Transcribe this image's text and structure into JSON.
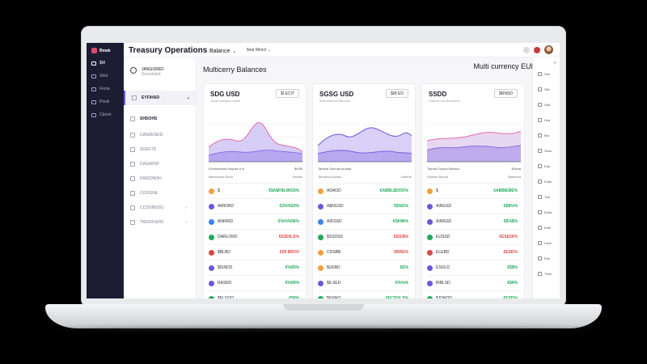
{
  "colors": {
    "accent": "#6b57d9",
    "positive": "#1faa5c",
    "negative": "#e24848",
    "rail": "#1c1d33"
  },
  "app": {
    "title": "Treasury Operations",
    "title_sub": "Balance",
    "workspace": "$ola Mimol"
  },
  "rail": {
    "brand": "Bmak",
    "items": [
      "$M",
      "Sbol",
      "Fiona",
      "Pinsk",
      "Cbomi"
    ]
  },
  "nav2": {
    "head_title": "JANGORED",
    "head_sub": "Soundsket",
    "items": [
      "EYFIHAD",
      "SHDOHS",
      "CANDENDD",
      "SDEKTD",
      "CASARSP",
      "DWDDNOH",
      "COOGNE",
      "CCDDBDOG",
      "TMDOOSHD"
    ]
  },
  "main": {
    "title": "Multicerry Balances",
    "currency_select": "Multi currency EUR HH"
  },
  "cards": [
    {
      "title": "SDG USD",
      "subtitle": "Sitoni nazigho ndosh",
      "button": "$I ECIT",
      "meta_left": "Echnmeonal Hasuse e ki",
      "meta_right": "$H3B",
      "meta2_left": "Ialaneoaial Dindi",
      "meta2_right": "Samlel",
      "rows": [
        {
          "ticker": "$",
          "value": "€$A$FBLWOS%",
          "sign": "pos",
          "coin": "#f2a03a"
        },
        {
          "ticker": "AMIORD",
          "value": "€2%%53%",
          "sign": "pos",
          "coin": "#6b57d9"
        },
        {
          "ticker": "ANIRRD",
          "value": "€%%%56%",
          "sign": "pos",
          "coin": "#3b82f6"
        },
        {
          "ticker": "DARLORD",
          "value": "€ESDILS%",
          "sign": "neg",
          "coin": "#1faa5c"
        },
        {
          "ticker": "$BLBD",
          "value": "€28 BRVO",
          "sign": "neg",
          "coin": "#d94848"
        },
        {
          "ticker": "$ISNDD",
          "value": "€%65%",
          "sign": "pos",
          "coin": "#6b57d9"
        },
        {
          "ticker": "RASRD",
          "value": "€%00%",
          "sign": "pos",
          "coin": "#6b57d9"
        },
        {
          "ticker": "$ELDOO",
          "value": "€$0%",
          "sign": "pos",
          "coin": "#1faa5c"
        }
      ]
    },
    {
      "title": "SGSG USD",
      "subtitle": "Biceoshidunt dkhoms",
      "button": "$IB ED",
      "meta_left": "Tarandt Diinnad anotaa",
      "meta_right": "",
      "meta2_left": "Teruwed Ausilan",
      "meta2_right": "Dahrue",
      "rows": [
        {
          "ticker": "ADAOD",
          "value": "€ABBL$DOO%",
          "sign": "pos",
          "coin": "#f2a03a"
        },
        {
          "ticker": "A$NGSD",
          "value": "€$%E%",
          "sign": "pos",
          "coin": "#6b57d9"
        },
        {
          "ticker": "AIDSSD",
          "value": "€SHIN%",
          "sign": "pos",
          "coin": "#3b82f6"
        },
        {
          "ticker": "$SSDSD",
          "value": "€ESI$%",
          "sign": "neg",
          "coin": "#1faa5c"
        },
        {
          "ticker": "CDSBB",
          "value": "€BRE%",
          "sign": "neg",
          "coin": "#f2a03a"
        },
        {
          "ticker": "$UEBD",
          "value": "€E%",
          "sign": "pos",
          "coin": "#f2a03a"
        },
        {
          "ticker": "$ILSED",
          "value": "€%%%",
          "sign": "pos",
          "coin": "#6b57d9"
        },
        {
          "ticker": "$ENNO",
          "value": "€ECDOLS%",
          "sign": "pos",
          "coin": "#1faa5c"
        }
      ]
    },
    {
      "title": "SSDD",
      "subtitle": "Suhmis dos denumos",
      "button": "$RNSD",
      "meta_left": "Tiancie Drosod Mhaoo",
      "meta_right": "$Ssaa",
      "meta2_left": "Slaniue Bohsd",
      "meta2_right": "Bdalmed",
      "rows": [
        {
          "ticker": "$",
          "value": "€ABBIEBE%",
          "sign": "pos",
          "coin": "#f2a03a"
        },
        {
          "ticker": "AINGSD",
          "value": "€$$%%",
          "sign": "pos",
          "coin": "#6b57d9"
        },
        {
          "ticker": "AIMSSD",
          "value": "€$%$%",
          "sign": "pos",
          "coin": "#6b57d9"
        },
        {
          "ticker": "EUSSD",
          "value": "€ESE50%",
          "sign": "neg",
          "coin": "#1faa5c"
        },
        {
          "ticker": "ELEBD",
          "value": "€ESD%",
          "sign": "neg",
          "coin": "#d94848"
        },
        {
          "ticker": "ESOLD",
          "value": "€$$%",
          "sign": "pos",
          "coin": "#6b57d9"
        },
        {
          "ticker": "BIBLSD",
          "value": "€$0%",
          "sign": "pos",
          "coin": "#6b57d9"
        },
        {
          "ticker": "$JDNOD",
          "value": "€ESD%",
          "sign": "pos",
          "coin": "#1faa5c"
        }
      ]
    }
  ],
  "rpanel": {
    "items": [
      "Hse",
      "Sllb",
      "Sab",
      "Hsd",
      "Btd",
      "Sbse",
      "Eab",
      "Eabe",
      "Tbd",
      "Ebbe",
      "Ebfe",
      "Lebe",
      "Ebe",
      "Tbbe"
    ]
  }
}
